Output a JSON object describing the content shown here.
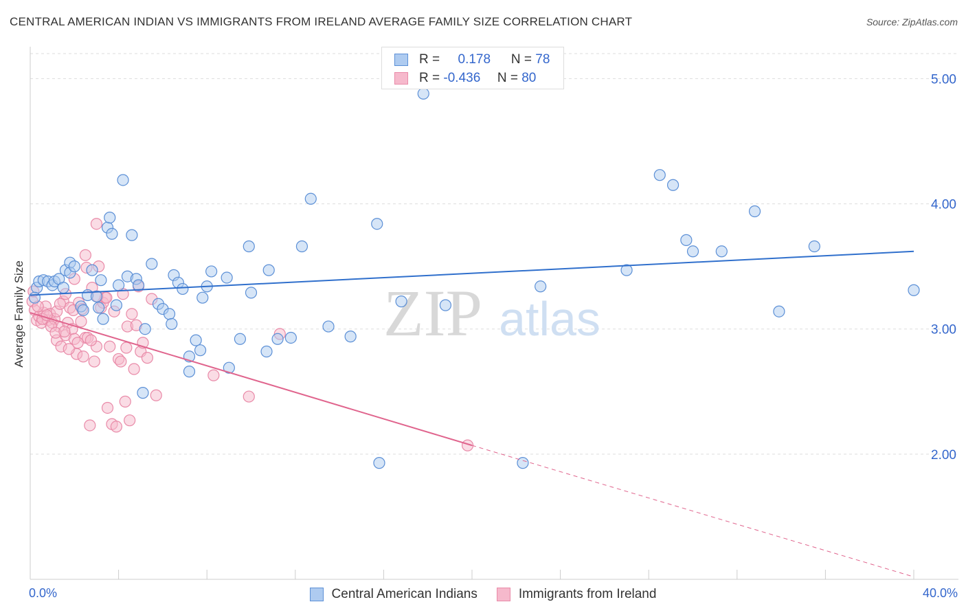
{
  "title": "CENTRAL AMERICAN INDIAN VS IMMIGRANTS FROM IRELAND AVERAGE FAMILY SIZE CORRELATION CHART",
  "source": "Source: ZipAtlas.com",
  "watermark": {
    "zip": "ZIP",
    "atlas": "atlas"
  },
  "legend_top": {
    "blue": {
      "r_label": "R =",
      "r_value": "0.178",
      "n_label": "N =",
      "n_value": "78"
    },
    "pink": {
      "r_label": "R =",
      "r_value": "-0.436",
      "n_label": "N =",
      "n_value": "80"
    }
  },
  "colors": {
    "blue_fill": "#aecbf0",
    "blue_stroke": "#5b8fd6",
    "blue_line": "#2f6fcc",
    "pink_fill": "#f6b9cc",
    "pink_stroke": "#e98aa8",
    "pink_line": "#e0648d",
    "grid": "#dddddd",
    "axis_text": "#3366cc"
  },
  "chart_data": {
    "type": "scatter",
    "title": "CENTRAL AMERICAN INDIAN VS IMMIGRANTS FROM IRELAND AVERAGE FAMILY SIZE CORRELATION CHART",
    "xlabel": "",
    "ylabel": "Average Family Size",
    "xlim": [
      0,
      40
    ],
    "ylim": [
      1.0,
      5.2
    ],
    "x_tick_labels": [
      "0.0%",
      "40.0%"
    ],
    "y_ticks": [
      2.0,
      3.0,
      4.0,
      5.0
    ],
    "y_tick_labels": [
      "2.00",
      "3.00",
      "4.00",
      "5.00"
    ],
    "grid": true,
    "series": [
      {
        "name": "Central American Indians",
        "color": "#5b8fd6",
        "trend": {
          "x0": 0,
          "y0": 3.27,
          "x1": 40,
          "y1": 3.62,
          "dashed_from": null
        },
        "points": [
          [
            0.3,
            3.33
          ],
          [
            0.4,
            3.38
          ],
          [
            0.6,
            3.39
          ],
          [
            0.8,
            3.38
          ],
          [
            1.0,
            3.35
          ],
          [
            1.1,
            3.38
          ],
          [
            1.3,
            3.4
          ],
          [
            1.5,
            3.33
          ],
          [
            1.6,
            3.47
          ],
          [
            1.8,
            3.53
          ],
          [
            1.8,
            3.45
          ],
          [
            2.0,
            3.5
          ],
          [
            2.3,
            3.18
          ],
          [
            2.4,
            3.15
          ],
          [
            2.6,
            3.27
          ],
          [
            2.8,
            3.47
          ],
          [
            3.0,
            3.26
          ],
          [
            3.1,
            3.17
          ],
          [
            3.2,
            3.39
          ],
          [
            3.3,
            3.08
          ],
          [
            3.5,
            3.81
          ],
          [
            3.6,
            3.89
          ],
          [
            3.7,
            3.76
          ],
          [
            3.9,
            3.19
          ],
          [
            4.0,
            3.35
          ],
          [
            4.2,
            4.19
          ],
          [
            4.4,
            3.42
          ],
          [
            4.6,
            3.75
          ],
          [
            4.8,
            3.4
          ],
          [
            4.9,
            3.35
          ],
          [
            5.1,
            2.49
          ],
          [
            5.2,
            3.0
          ],
          [
            5.5,
            3.52
          ],
          [
            5.8,
            3.2
          ],
          [
            6.0,
            3.16
          ],
          [
            6.3,
            3.12
          ],
          [
            6.4,
            3.04
          ],
          [
            6.5,
            3.43
          ],
          [
            6.7,
            3.37
          ],
          [
            6.9,
            3.32
          ],
          [
            7.2,
            2.78
          ],
          [
            7.2,
            2.66
          ],
          [
            7.5,
            2.91
          ],
          [
            7.7,
            2.83
          ],
          [
            7.8,
            3.25
          ],
          [
            8.0,
            3.34
          ],
          [
            8.2,
            3.46
          ],
          [
            8.9,
            3.41
          ],
          [
            9.0,
            2.69
          ],
          [
            9.5,
            2.92
          ],
          [
            9.9,
            3.66
          ],
          [
            10.0,
            3.29
          ],
          [
            10.7,
            2.82
          ],
          [
            10.8,
            3.47
          ],
          [
            11.2,
            2.92
          ],
          [
            11.8,
            2.93
          ],
          [
            12.3,
            3.66
          ],
          [
            12.7,
            4.04
          ],
          [
            13.5,
            3.02
          ],
          [
            14.5,
            2.94
          ],
          [
            15.7,
            3.84
          ],
          [
            15.8,
            1.93
          ],
          [
            16.8,
            3.22
          ],
          [
            17.8,
            4.88
          ],
          [
            18.8,
            3.19
          ],
          [
            22.3,
            1.93
          ],
          [
            23.1,
            3.34
          ],
          [
            27.0,
            3.47
          ],
          [
            28.5,
            4.23
          ],
          [
            29.1,
            4.15
          ],
          [
            29.7,
            3.71
          ],
          [
            30.0,
            3.62
          ],
          [
            31.3,
            3.62
          ],
          [
            32.8,
            3.94
          ],
          [
            33.9,
            3.14
          ],
          [
            35.5,
            3.66
          ],
          [
            40.0,
            3.31
          ],
          [
            0.2,
            3.25
          ]
        ]
      },
      {
        "name": "Immigrants from Ireland",
        "color": "#e98aa8",
        "trend": {
          "x0": 0,
          "y0": 3.13,
          "x1": 20,
          "y1": 2.07,
          "dashed_x1": 40,
          "dashed_y1": 1.02
        },
        "points": [
          [
            0.1,
            3.22
          ],
          [
            0.2,
            3.15
          ],
          [
            0.3,
            3.07
          ],
          [
            0.4,
            3.1
          ],
          [
            0.5,
            3.05
          ],
          [
            0.6,
            3.13
          ],
          [
            0.7,
            3.18
          ],
          [
            0.8,
            3.07
          ],
          [
            0.9,
            3.12
          ],
          [
            1.0,
            3.05
          ],
          [
            1.1,
            3.08
          ],
          [
            1.2,
            2.91
          ],
          [
            1.2,
            3.14
          ],
          [
            1.3,
            3.02
          ],
          [
            1.4,
            2.86
          ],
          [
            1.5,
            3.22
          ],
          [
            1.6,
            3.28
          ],
          [
            1.6,
            2.95
          ],
          [
            1.7,
            3.05
          ],
          [
            1.8,
            3.17
          ],
          [
            1.9,
            3.0
          ],
          [
            2.0,
            2.92
          ],
          [
            2.0,
            3.4
          ],
          [
            2.1,
            2.8
          ],
          [
            2.2,
            3.21
          ],
          [
            2.3,
            3.06
          ],
          [
            2.4,
            2.78
          ],
          [
            2.5,
            3.59
          ],
          [
            2.5,
            2.93
          ],
          [
            2.6,
            2.93
          ],
          [
            2.7,
            2.23
          ],
          [
            2.8,
            3.33
          ],
          [
            2.9,
            2.74
          ],
          [
            3.0,
            2.86
          ],
          [
            3.0,
            3.84
          ],
          [
            3.1,
            3.5
          ],
          [
            3.2,
            3.17
          ],
          [
            3.3,
            3.21
          ],
          [
            3.4,
            3.25
          ],
          [
            3.5,
            2.37
          ],
          [
            3.6,
            2.86
          ],
          [
            3.7,
            2.24
          ],
          [
            3.8,
            3.14
          ],
          [
            3.9,
            2.22
          ],
          [
            4.0,
            2.76
          ],
          [
            4.1,
            2.74
          ],
          [
            4.2,
            3.28
          ],
          [
            4.3,
            2.42
          ],
          [
            4.4,
            3.02
          ],
          [
            4.5,
            2.27
          ],
          [
            4.6,
            3.12
          ],
          [
            4.7,
            2.68
          ],
          [
            4.8,
            3.03
          ],
          [
            4.9,
            3.34
          ],
          [
            5.0,
            2.82
          ],
          [
            5.1,
            2.89
          ],
          [
            5.3,
            2.77
          ],
          [
            5.5,
            3.24
          ],
          [
            5.7,
            2.47
          ],
          [
            0.15,
            3.3
          ],
          [
            0.35,
            3.18
          ],
          [
            0.55,
            3.08
          ],
          [
            0.75,
            3.11
          ],
          [
            0.95,
            3.02
          ],
          [
            1.15,
            2.97
          ],
          [
            1.35,
            3.2
          ],
          [
            1.55,
            2.98
          ],
          [
            1.75,
            2.84
          ],
          [
            1.95,
            3.15
          ],
          [
            2.15,
            2.89
          ],
          [
            2.35,
            3.16
          ],
          [
            2.55,
            3.49
          ],
          [
            2.75,
            2.91
          ],
          [
            3.05,
            3.26
          ],
          [
            3.45,
            3.25
          ],
          [
            4.35,
            2.85
          ],
          [
            8.3,
            2.63
          ],
          [
            9.9,
            2.46
          ],
          [
            11.3,
            2.96
          ],
          [
            19.8,
            2.07
          ]
        ]
      }
    ],
    "legend": [
      "Central American Indians",
      "Immigrants from Ireland"
    ],
    "legend_placement": "bottom-center"
  }
}
